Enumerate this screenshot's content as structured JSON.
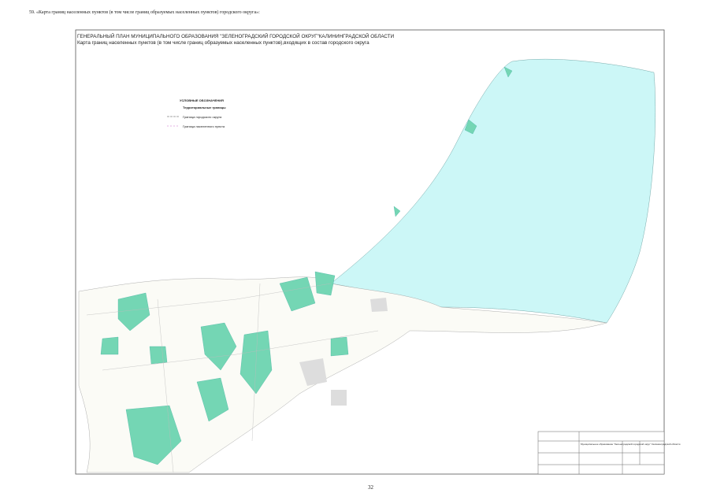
{
  "header": {
    "caption": "59. «Карта границ населенных пунктов (в том числе границ образуемых населенных пунктов) городского округа»:"
  },
  "map": {
    "title": "ГЕНЕРАЛЬНЫЙ ПЛАН МУНИЦИПАЛЬНОГО ОБРАЗОВАНИЯ \"ЗЕЛЕНОГРАДСКИЙ ГОРОДСКОЙ ОКРУГ\"КАЛИНИНГРАДСКОЙ ОБЛАСТИ",
    "subtitle": "Карта границ населенных пунктов (в том числе границ образуемых населенных пунктов),входящих в состав городского округа",
    "legend": {
      "title": "УСЛОВНЫЕ ОБОЗНАЧЕНИЯ",
      "section": "Территориальные границы",
      "items": [
        "Граница городского округа",
        "Граница населенного пункта"
      ]
    },
    "stamp": {
      "org": "Муниципальное образование \"Зеленоградский городской округ\" Калининградской области"
    }
  },
  "footer": {
    "page": "32"
  }
}
